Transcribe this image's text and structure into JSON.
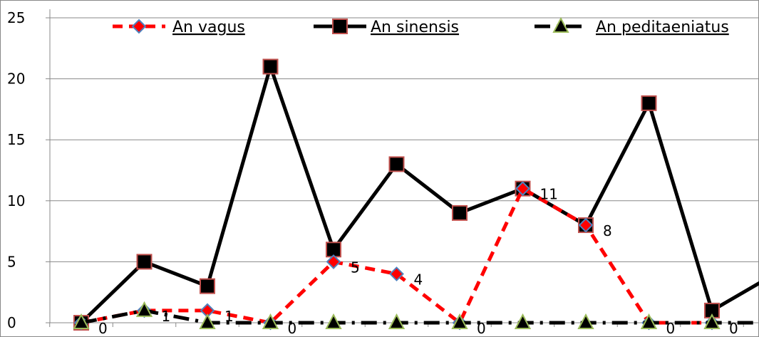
{
  "chart_data": {
    "type": "line",
    "title": "",
    "xlabel": "",
    "ylabel": "",
    "ylim": [
      0,
      25
    ],
    "yticks": [
      "0",
      "5",
      "10",
      "15",
      "20",
      "25"
    ],
    "grid": "horizontal",
    "legend_position": "top",
    "point_count": 13,
    "series": [
      {
        "name": "An vagus",
        "line_color": "#ff0000",
        "line_style": "dashed",
        "marker": "diamond",
        "marker_fill": "#ff0000",
        "marker_edge": "#4f81bd",
        "values": [
          0,
          1,
          1,
          0,
          5,
          4,
          0,
          11,
          8,
          0,
          0
        ],
        "labels": [
          "0",
          "1",
          "1",
          "0",
          "5",
          "4",
          "0",
          "11",
          "8",
          "0",
          "0"
        ]
      },
      {
        "name": "An sinensis",
        "line_color": "#000000",
        "line_style": "solid",
        "marker": "square",
        "marker_fill": "#000000",
        "marker_edge": "#c0504d",
        "values": [
          0,
          5,
          3,
          21,
          6,
          13,
          9,
          11,
          8,
          18,
          1,
          4
        ]
      },
      {
        "name": "An peditaeniatus",
        "line_color": "#000000",
        "line_style": "dashdot",
        "marker": "triangle",
        "marker_fill": "#000000",
        "marker_edge": "#9bbb59",
        "values": [
          0,
          1,
          0,
          0,
          0,
          0,
          0,
          0,
          0,
          0,
          0,
          0,
          0
        ]
      }
    ]
  }
}
